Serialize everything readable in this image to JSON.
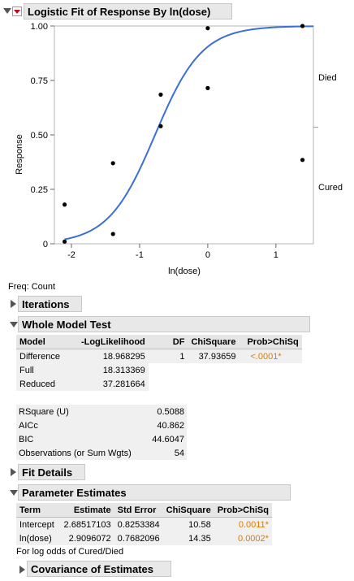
{
  "report": {
    "title": "Logistic Fit of Response By ln(dose)",
    "freq_note": "Freq: Count"
  },
  "chart_data": {
    "type": "scatter",
    "title": "",
    "xlabel": "ln(dose)",
    "ylabel": "Response",
    "xlim": [
      -2.25,
      1.55
    ],
    "ylim": [
      0,
      1
    ],
    "x_ticks": [
      "-2",
      "-1",
      "0",
      "1"
    ],
    "x_tick_values": [
      -2,
      -1,
      0,
      1
    ],
    "y_ticks": [
      "0",
      "0.25",
      "0.50",
      "0.75",
      "1.00"
    ],
    "y_tick_values": [
      0,
      0.25,
      0.5,
      0.75,
      1.0
    ],
    "right_labels": [
      "Died",
      "Cured"
    ],
    "right_divider": 0.535,
    "points": [
      {
        "x": -2.1,
        "y": 0.18
      },
      {
        "x": -2.1,
        "y": 0.01
      },
      {
        "x": -1.39,
        "y": 0.37
      },
      {
        "x": -1.39,
        "y": 0.045
      },
      {
        "x": -0.69,
        "y": 0.685
      },
      {
        "x": -0.69,
        "y": 0.54
      },
      {
        "x": 0.0,
        "y": 0.99
      },
      {
        "x": 0.0,
        "y": 0.715
      },
      {
        "x": 1.39,
        "y": 1.0
      },
      {
        "x": 1.39,
        "y": 0.385
      }
    ],
    "curve": {
      "intercept": 2.68517103,
      "slope": 2.9096072,
      "color": "#3a6fd8"
    },
    "grid": false
  },
  "iterations": {
    "title": "Iterations"
  },
  "whole_model": {
    "title": "Whole Model Test",
    "headers": [
      "Model",
      "-LogLikelihood",
      "DF",
      "ChiSquare",
      "Prob>ChiSq"
    ],
    "rows": [
      [
        "Difference",
        "18.968295",
        "1",
        "37.93659",
        "<.0001*"
      ],
      [
        "Full",
        "18.313369",
        "",
        "",
        ""
      ],
      [
        "Reduced",
        "37.281664",
        "",
        "",
        ""
      ]
    ]
  },
  "summary": {
    "rows": [
      [
        "RSquare (U)",
        "0.5088"
      ],
      [
        "AICc",
        "40.862"
      ],
      [
        "BIC",
        "44.6047"
      ],
      [
        "Observations (or Sum Wgts)",
        "54"
      ]
    ]
  },
  "fit_details": {
    "title": "Fit Details"
  },
  "param_est": {
    "title": "Parameter Estimates",
    "headers": [
      "Term",
      "Estimate",
      "Std Error",
      "ChiSquare",
      "Prob>ChiSq"
    ],
    "rows": [
      [
        "Intercept",
        "2.68517103",
        "0.8253384",
        "10.58",
        "0.0011*"
      ],
      [
        "ln(dose)",
        "2.9096072",
        "0.7682096",
        "14.35",
        "0.0002*"
      ]
    ],
    "note": "For log odds of Cured/Died"
  },
  "covariance": {
    "title": "Covariance of Estimates"
  }
}
